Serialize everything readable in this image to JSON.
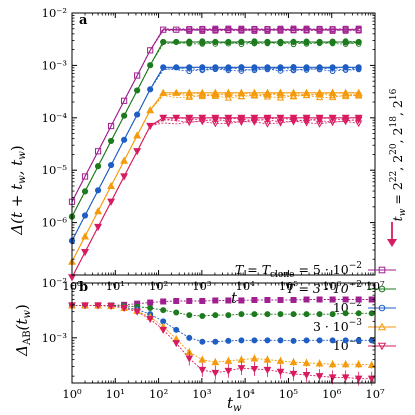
{
  "chart_data": [
    {
      "panel": "a",
      "type": "line",
      "xlabel": "t",
      "ylabel": "Δ(t + t_w, t_w)",
      "xscale": "log",
      "yscale": "log",
      "xlim": [
        1,
        10000000
      ],
      "ylim": [
        1e-07,
        0.01
      ],
      "x_ticks": [
        1,
        10,
        100,
        1000,
        10000,
        100000,
        1000000,
        10000000
      ],
      "x_tick_labels": [
        "10⁰",
        "10¹",
        "10²",
        "10³",
        "10⁴",
        "10⁵",
        "10⁶",
        "10⁷"
      ],
      "y_ticks": [
        1e-06,
        1e-05,
        0.0001,
        0.001,
        0.01
      ],
      "y_tick_labels": [
        "10⁻⁶",
        "10⁻⁵",
        "10⁻⁴",
        "10⁻³",
        "10⁻²"
      ],
      "side_label": "t_w = 2²², 2²⁰, 2¹⁸, 2¹⁶",
      "legend_placement": "bottom-right",
      "series": [
        {
          "name": "T = T_clone = 5 · 10⁻²",
          "color": "#a0208f",
          "marker": "square",
          "plateau": 0.0048,
          "a": 2.5e-06,
          "b": 1.6,
          "spread": 0.0
        },
        {
          "name": "T = 3 · 10⁻²",
          "color": "#1e7a1e",
          "marker": "circle",
          "plateau": 0.0028,
          "a": 1.3e-06,
          "b": 1.6,
          "spread": 0.04
        },
        {
          "name": "10⁻²",
          "color": "#1f5ec4",
          "marker": "circle",
          "plateau": 0.00092,
          "a": 4.5e-07,
          "b": 1.6,
          "spread": 0.1
        },
        {
          "name": "3 · 10⁻³",
          "color": "#f59a0c",
          "marker": "triangle-up",
          "plateau": 0.0003,
          "a": 1.8e-07,
          "b": 1.6,
          "spread": 0.14
        },
        {
          "name": "10⁻³",
          "color": "#d81b60",
          "marker": "triangle-down",
          "plateau": 0.0001,
          "a": 9e-08,
          "b": 1.6,
          "spread": 0.18
        }
      ],
      "x_points": [
        1,
        2,
        4,
        8,
        16,
        32,
        64,
        128,
        256,
        512,
        1024,
        2048,
        4096,
        8192,
        16384,
        32768,
        65536,
        131072,
        262144,
        524288,
        1048576,
        2097152,
        4194304
      ]
    },
    {
      "panel": "b",
      "type": "line",
      "xlabel": "t_w",
      "ylabel": "Δ_AB(t_w)",
      "xscale": "log",
      "yscale": "log",
      "xlim": [
        1,
        10000000
      ],
      "ylim": [
        0.00015,
        0.01
      ],
      "x_ticks": [
        1,
        10,
        100,
        1000,
        10000,
        100000,
        1000000,
        10000000
      ],
      "x_tick_labels": [
        "10⁰",
        "10¹",
        "10²",
        "10³",
        "10⁴",
        "10⁵",
        "10⁶",
        "10⁷"
      ],
      "y_ticks": [
        0.001,
        0.01
      ],
      "y_tick_labels": [
        "10⁻³",
        "10⁻²"
      ],
      "x": [
        1,
        2,
        4,
        8,
        16,
        32,
        64,
        128,
        256,
        512,
        1024,
        2048,
        4096,
        8192,
        16384,
        32768,
        65536,
        131072,
        262144,
        524288,
        1048576,
        2097152,
        4194304,
        8388608
      ],
      "series": [
        {
          "color": "#a0208f",
          "marker": "square",
          "values": [
            0.0039,
            0.0039,
            0.0039,
            0.0039,
            0.004,
            0.0042,
            0.0044,
            0.0046,
            0.0047,
            0.0047,
            0.0047,
            0.0048,
            0.0048,
            0.0048,
            0.0049,
            0.0049,
            0.0049,
            0.0049,
            0.005,
            0.005,
            0.005,
            0.005,
            0.005,
            0.005
          ]
        },
        {
          "color": "#1e7a1e",
          "marker": "circle",
          "values": [
            0.0039,
            0.0039,
            0.0039,
            0.0039,
            0.0038,
            0.0037,
            0.0035,
            0.0032,
            0.0029,
            0.0026,
            0.0025,
            0.0026,
            0.0026,
            0.0027,
            0.0027,
            0.0027,
            0.0027,
            0.0027,
            0.0027,
            0.0027,
            0.0027,
            0.0028,
            0.0028,
            0.0028
          ]
        },
        {
          "color": "#1f5ec4",
          "marker": "circle",
          "values": [
            0.0039,
            0.0039,
            0.0039,
            0.0038,
            0.0036,
            0.0033,
            0.0027,
            0.002,
            0.0014,
            0.001,
            0.00085,
            0.00085,
            0.00088,
            0.0009,
            0.0009,
            0.0009,
            0.0009,
            0.00088,
            0.0009,
            0.0009,
            0.0009,
            0.0009,
            0.0009,
            0.0009
          ]
        },
        {
          "color": "#f59a0c",
          "marker": "triangle-up",
          "values": [
            0.0039,
            0.0039,
            0.0039,
            0.0038,
            0.0035,
            0.0031,
            0.0024,
            0.0016,
            0.00095,
            0.00055,
            0.0004,
            0.00036,
            0.00038,
            0.0004,
            0.00042,
            0.0004,
            0.00038,
            0.00036,
            0.00035,
            0.00034,
            0.00033,
            0.00033,
            0.00033,
            0.00032
          ]
        },
        {
          "color": "#d81b60",
          "marker": "triangle-down",
          "values": [
            0.0039,
            0.0039,
            0.0039,
            0.0038,
            0.0035,
            0.003,
            0.0022,
            0.0014,
            0.0008,
            0.00042,
            0.00026,
            0.00023,
            0.00025,
            0.00028,
            0.00027,
            0.00026,
            0.00024,
            0.00022,
            0.00021,
            0.0002,
            0.00019,
            0.00019,
            0.00018,
            0.00018
          ]
        }
      ]
    }
  ],
  "legend": {
    "line1": "T = T",
    "line1_sub": "clone",
    "line1_tail": " = 5 · 10",
    "line1_exp": "−2",
    "line2": "T = 3 · 10",
    "line2_exp": "−2",
    "line3": "10",
    "line3_exp": "−2",
    "line4": "3 · 10",
    "line4_exp": "−3",
    "line5": "10",
    "line5_exp": "−3"
  },
  "labels": {
    "panel_a": "a",
    "panel_b": "b",
    "a_xlabel": "t",
    "b_xlabel": "t",
    "b_xlabel_sub": "w",
    "a_ylabel_main": "Δ(t + t",
    "a_ylabel_sub": "w",
    "a_ylabel_mid": ", t",
    "a_ylabel_sub2": "w",
    "a_ylabel_end": ")",
    "b_ylabel_main": "Δ",
    "b_ylabel_sub": "AB",
    "b_ylabel_mid": "(t",
    "b_ylabel_sub2": "w",
    "b_ylabel_end": ")",
    "side_main": "t",
    "side_sub": "w",
    "side_rest": " = 2",
    "side_e1": "22",
    "side_c1": ", 2",
    "side_e2": "20",
    "side_c2": ", 2",
    "side_e3": "18",
    "side_c3": ", 2",
    "side_e4": "16"
  }
}
